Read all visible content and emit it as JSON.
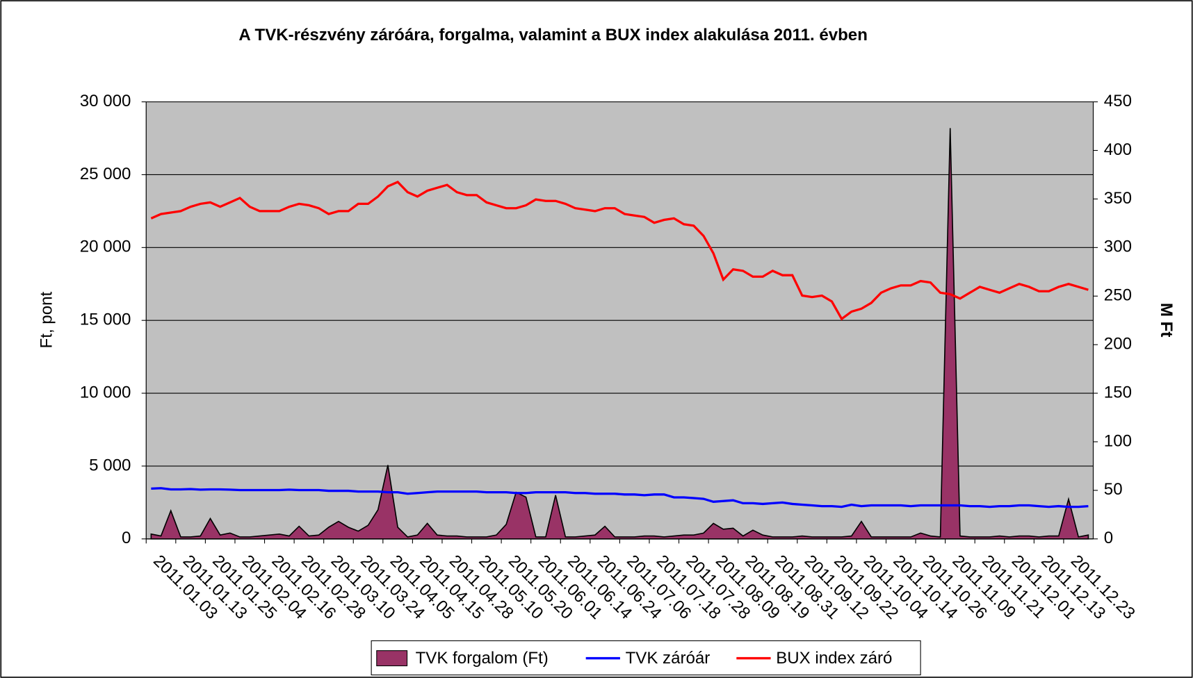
{
  "chart_data": {
    "type": "line",
    "title": "A TVK-részvény záróára, forgalma, valamint a BUX index alakulása 2011. évben",
    "y_label": "Ft, pont",
    "y2_label": "M Ft",
    "legend": "bottom",
    "grid": true,
    "background": "#c0c0c0",
    "ylim": [
      0,
      30000
    ],
    "yticks": [
      0,
      {
        "value": 5000,
        "label": "5 000"
      },
      {
        "value": 10000,
        "label": "10 000"
      },
      {
        "value": 15000,
        "label": "15 000"
      },
      {
        "value": 20000,
        "label": "20 000"
      },
      {
        "value": 25000,
        "label": "25 000"
      },
      {
        "value": 30000,
        "label": "30 000"
      }
    ],
    "y2lim": [
      0,
      450
    ],
    "y2ticks": [
      0,
      50,
      100,
      150,
      200,
      250,
      300,
      350,
      400,
      450
    ],
    "categories": [
      "2011.01.03",
      null,
      null,
      "2011.01.13",
      null,
      null,
      "2011.01.25",
      null,
      null,
      "2011.02.04",
      null,
      null,
      "2011.02.16",
      null,
      null,
      "2011.02.28",
      null,
      null,
      "2011.03.10",
      null,
      null,
      "2011.03.24",
      null,
      null,
      "2011.04.05",
      null,
      null,
      "2011.04.15",
      null,
      null,
      "2011.04.28",
      null,
      null,
      "2011.05.10",
      null,
      null,
      "2011.05.20",
      null,
      null,
      "2011.06.01",
      null,
      null,
      "2011.06.14",
      null,
      null,
      "2011.06.24",
      null,
      null,
      "2011.07.06",
      null,
      null,
      "2011.07.18",
      null,
      null,
      "2011.07.28",
      null,
      null,
      "2011.08.09",
      null,
      null,
      "2011.08.19",
      null,
      null,
      "2011.08.31",
      null,
      null,
      "2011.09.12",
      null,
      null,
      "2011.09.22",
      null,
      null,
      "2011.10.04",
      null,
      null,
      "2011.10.14",
      null,
      null,
      "2011.10.26",
      null,
      null,
      "2011.11.09",
      null,
      null,
      "2011.11.21",
      null,
      null,
      "2011.12.01",
      null,
      null,
      "2011.12.13",
      null,
      null,
      "2011.12.23",
      null,
      null
    ],
    "series": [
      {
        "name": "TVK forgalom (Ft)",
        "type": "area",
        "axis": "y2",
        "color": "#993366",
        "values": [
          5,
          3,
          29,
          2,
          2,
          3,
          21,
          4,
          6,
          2,
          2,
          3,
          4,
          5,
          3,
          13,
          3,
          4,
          12,
          18,
          12,
          8,
          14,
          30,
          76,
          12,
          2,
          4,
          16,
          4,
          3,
          3,
          2,
          2,
          2,
          4,
          15,
          48,
          43,
          2,
          2,
          45,
          2,
          2,
          3,
          4,
          13,
          2,
          2,
          2,
          3,
          3,
          2,
          3,
          4,
          4,
          6,
          16,
          10,
          11,
          3,
          9,
          4,
          2,
          2,
          2,
          3,
          2,
          2,
          2,
          2,
          3,
          18,
          2,
          2,
          2,
          2,
          2,
          6,
          3,
          2,
          423,
          3,
          2,
          2,
          2,
          3,
          2,
          3,
          3,
          2,
          3,
          3,
          41,
          2,
          4
        ]
      },
      {
        "name": "TVK záróár",
        "type": "line",
        "color": "#0000ff",
        "values": [
          3450,
          3480,
          3400,
          3400,
          3420,
          3380,
          3400,
          3400,
          3380,
          3350,
          3350,
          3350,
          3350,
          3350,
          3380,
          3350,
          3350,
          3350,
          3300,
          3300,
          3300,
          3250,
          3250,
          3250,
          3200,
          3200,
          3100,
          3150,
          3200,
          3250,
          3250,
          3250,
          3250,
          3250,
          3200,
          3200,
          3200,
          3150,
          3150,
          3200,
          3200,
          3200,
          3200,
          3150,
          3150,
          3100,
          3100,
          3100,
          3050,
          3050,
          3000,
          3050,
          3050,
          2850,
          2850,
          2800,
          2750,
          2550,
          2600,
          2650,
          2450,
          2450,
          2400,
          2450,
          2500,
          2400,
          2350,
          2300,
          2250,
          2250,
          2200,
          2350,
          2250,
          2300,
          2300,
          2300,
          2300,
          2250,
          2300,
          2300,
          2300,
          2300,
          2300,
          2250,
          2250,
          2200,
          2250,
          2250,
          2300,
          2300,
          2250,
          2200,
          2250,
          2200,
          2200,
          2250
        ]
      },
      {
        "name": "BUX index záró",
        "type": "line",
        "color": "#ff0000",
        "values": [
          22000,
          22300,
          22400,
          22500,
          22800,
          23000,
          23100,
          22800,
          23100,
          23400,
          22800,
          22500,
          22500,
          22500,
          22800,
          23000,
          22900,
          22700,
          22300,
          22500,
          22500,
          23000,
          23000,
          23500,
          24200,
          24500,
          23800,
          23500,
          23900,
          24100,
          24300,
          23800,
          23600,
          23600,
          23100,
          22900,
          22700,
          22700,
          22900,
          23300,
          23200,
          23200,
          23000,
          22700,
          22600,
          22500,
          22700,
          22700,
          22300,
          22200,
          22100,
          21700,
          21900,
          22000,
          21600,
          21500,
          20800,
          19600,
          17800,
          18500,
          18400,
          18000,
          18000,
          18400,
          18100,
          18100,
          16700,
          16600,
          16700,
          16300,
          15100,
          15600,
          15800,
          16200,
          16900,
          17200,
          17400,
          17400,
          17700,
          17600,
          16900,
          16800,
          16500,
          16900,
          17300,
          17100,
          16900,
          17200,
          17500,
          17300,
          17000,
          17000,
          17300,
          17500,
          17300,
          17100
        ]
      }
    ]
  }
}
